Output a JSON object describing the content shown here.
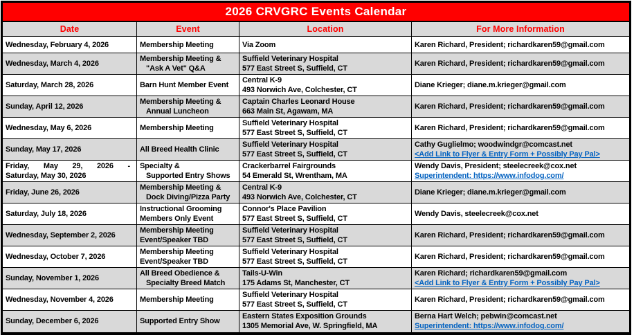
{
  "title": "2026 CRVGRC Events Calendar",
  "columns": [
    "Date",
    "Event",
    "Location",
    "For More Information"
  ],
  "colors": {
    "brand_red": "#ff0000",
    "title_text": "#ffffff",
    "row_alt_gray": "#d9d9d9",
    "link_blue": "#0563c1",
    "border_black": "#000000"
  },
  "rows": [
    {
      "shaded": false,
      "date": [
        {
          "text": "Wednesday, February 4, 2026"
        }
      ],
      "event": [
        {
          "text": "Membership Meeting"
        }
      ],
      "location": [
        {
          "text": "Via Zoom"
        }
      ],
      "info": [
        {
          "text": "Karen Richard, President; richardkaren59@gmail.com"
        }
      ]
    },
    {
      "shaded": true,
      "date": [
        {
          "text": "Wednesday, March 4, 2026"
        }
      ],
      "event": [
        {
          "text": "Membership Meeting &"
        },
        {
          "text": "\"Ask A Vet\" Q&A",
          "indent": true
        }
      ],
      "location": [
        {
          "text": "Suffield Veterinary Hospital"
        },
        {
          "text": "577 East Street S, Suffield, CT"
        }
      ],
      "info": [
        {
          "text": "Karen Richard, President; richardkaren59@gmail.com"
        }
      ]
    },
    {
      "shaded": false,
      "date": [
        {
          "text": "Saturday, March 28, 2026"
        }
      ],
      "event": [
        {
          "text": "Barn Hunt Member Event"
        }
      ],
      "location": [
        {
          "text": "Central K-9"
        },
        {
          "text": "493 Norwich Ave, Colchester, CT"
        }
      ],
      "info": [
        {
          "text": "Diane Krieger; diane.m.krieger@gmail.com"
        }
      ]
    },
    {
      "shaded": true,
      "date": [
        {
          "text": "Sunday, April 12, 2026"
        }
      ],
      "event": [
        {
          "text": "Membership Meeting &"
        },
        {
          "text": "Annual Luncheon",
          "indent": true
        }
      ],
      "location": [
        {
          "text": "Captain Charles Leonard House"
        },
        {
          "text": "663 Main St, Agawam, MA"
        }
      ],
      "info": [
        {
          "text": "Karen Richard, President; richardkaren59@gmail.com"
        }
      ]
    },
    {
      "shaded": false,
      "date": [
        {
          "text": "Wednesday, May 6, 2026"
        }
      ],
      "event": [
        {
          "text": "Membership Meeting"
        }
      ],
      "location": [
        {
          "text": "Suffield Veterinary Hospital"
        },
        {
          "text": "577 East Street S, Suffield, CT"
        }
      ],
      "info": [
        {
          "text": "Karen Richard, President; richardkaren59@gmail.com"
        }
      ]
    },
    {
      "shaded": true,
      "date": [
        {
          "text": "Sunday, May 17, 2026"
        }
      ],
      "event": [
        {
          "text": "All Breed Health Clinic"
        }
      ],
      "location": [
        {
          "text": "Suffield Veterinary Hospital"
        },
        {
          "text": "577 East Street S, Suffield, CT"
        }
      ],
      "info": [
        {
          "text": "Cathy Guglielmo; woodwindgr@comcast.net"
        },
        {
          "text": "<Add Link to Flyer & Entry Form + Possibly Pay Pal>",
          "link": true
        }
      ]
    },
    {
      "shaded": false,
      "date": [
        {
          "text": "Friday, May 29, 2026 -",
          "justify": true
        },
        {
          "text": "Saturday, May 30, 2026"
        }
      ],
      "event": [
        {
          "text": "Specialty &"
        },
        {
          "text": "Supported Entry Shows",
          "indent": true
        }
      ],
      "location": [
        {
          "text": "Crackerbarrel Fairgrounds"
        },
        {
          "text": "54 Emerald St, Wrentham, MA"
        }
      ],
      "info": [
        {
          "text": "Wendy Davis, President; steelecreek@cox.net"
        },
        {
          "text": "Superintendent:  https://www.infodog.com/",
          "link": true
        }
      ]
    },
    {
      "shaded": true,
      "date": [
        {
          "text": "Friday, June 26, 2026"
        }
      ],
      "event": [
        {
          "text": "Membership Meeting &"
        },
        {
          "text": "Dock Diving/Pizza Party",
          "indent": true
        }
      ],
      "location": [
        {
          "text": "Central K-9"
        },
        {
          "text": "493 Norwich Ave, Colchester, CT"
        }
      ],
      "info": [
        {
          "text": "Diane Krieger; diane.m.krieger@gmail.com"
        }
      ]
    },
    {
      "shaded": false,
      "date": [
        {
          "text": "Saturday, July 18, 2026"
        }
      ],
      "event": [
        {
          "text": "Instructional Grooming"
        },
        {
          "text": "Members Only Event"
        }
      ],
      "location": [
        {
          "text": "Connor's Place Pavilion"
        },
        {
          "text": "577 East Street S, Suffield, CT"
        }
      ],
      "info": [
        {
          "text": "Wendy Davis, steelecreek@cox.net"
        }
      ]
    },
    {
      "shaded": true,
      "date": [
        {
          "text": "Wednesday, September 2, 2026"
        }
      ],
      "event": [
        {
          "text": "Membership Meeting"
        },
        {
          "text": "Event/Speaker TBD"
        }
      ],
      "location": [
        {
          "text": "Suffield Veterinary Hospital"
        },
        {
          "text": "577 East Street S, Suffield, CT"
        }
      ],
      "info": [
        {
          "text": "Karen Richard, President; richardkaren59@gmail.com"
        }
      ]
    },
    {
      "shaded": false,
      "date": [
        {
          "text": "Wednesday, October 7, 2026"
        }
      ],
      "event": [
        {
          "text": "Membership Meeting"
        },
        {
          "text": "Event/Speaker TBD"
        }
      ],
      "location": [
        {
          "text": "Suffield Veterinary Hospital"
        },
        {
          "text": "577 East Street S, Suffield, CT"
        }
      ],
      "info": [
        {
          "text": "Karen Richard, President; richardkaren59@gmail.com"
        }
      ]
    },
    {
      "shaded": true,
      "date": [
        {
          "text": "Sunday, November 1, 2026"
        }
      ],
      "event": [
        {
          "text": "All Breed Obedience &"
        },
        {
          "text": "Specialty Breed Match",
          "indent": true
        }
      ],
      "location": [
        {
          "text": "Tails-U-Win"
        },
        {
          "text": "175 Adams St, Manchester, CT"
        }
      ],
      "info": [
        {
          "text": "Karen Richard; richardkaren59@gmail.com"
        },
        {
          "text": "<Add Link to Flyer & Entry Form + Possibly Pay Pal>",
          "link": true
        }
      ]
    },
    {
      "shaded": false,
      "date": [
        {
          "text": "Wednesday, November 4, 2026"
        }
      ],
      "event": [
        {
          "text": "Membership Meeting"
        }
      ],
      "location": [
        {
          "text": "Suffield Veterinary Hospital"
        },
        {
          "text": "577 East Street S, Suffield, CT"
        }
      ],
      "info": [
        {
          "text": "Karen Richard, President; richardkaren59@gmail.com"
        }
      ]
    },
    {
      "shaded": true,
      "date": [
        {
          "text": "Sunday, December 6, 2026"
        }
      ],
      "event": [
        {
          "text": "Supported Entry Show"
        }
      ],
      "location": [
        {
          "text": "Eastern States Exposition Grounds"
        },
        {
          "text": "1305 Memorial Ave, W. Springfield, MA"
        }
      ],
      "info": [
        {
          "text": "Berna Hart Welch; pebwin@comcast.net"
        },
        {
          "text": "Superintendent:  https://www.infodog.com/",
          "link": true
        }
      ]
    }
  ]
}
